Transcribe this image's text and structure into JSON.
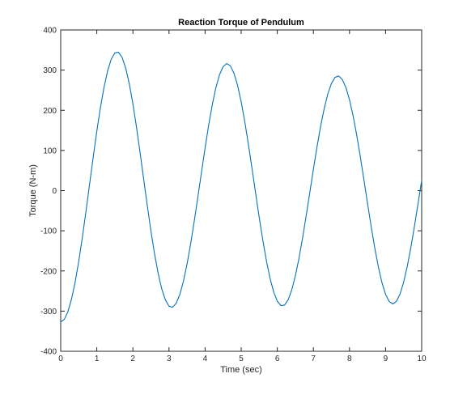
{
  "chart_data": {
    "type": "line",
    "title": "Reaction Torque of Pendulum",
    "xlabel": "Time (sec)",
    "ylabel": "Torque (N-m)",
    "xlim": [
      0,
      10
    ],
    "ylim": [
      -400,
      400
    ],
    "xticks": [
      0,
      1,
      2,
      3,
      4,
      5,
      6,
      7,
      8,
      9,
      10
    ],
    "yticks": [
      -400,
      -300,
      -200,
      -100,
      0,
      100,
      200,
      300,
      400
    ],
    "grid": false,
    "legend": "none",
    "series": [
      {
        "color": "#0072BD",
        "x": [
          0.0,
          0.1,
          0.2,
          0.3,
          0.4,
          0.5,
          0.6,
          0.7,
          0.8,
          0.9,
          1.0,
          1.1,
          1.2,
          1.3,
          1.4,
          1.5,
          1.6,
          1.7,
          1.8,
          1.9,
          2.0,
          2.1,
          2.2,
          2.3,
          2.4,
          2.5,
          2.6,
          2.7,
          2.8,
          2.9,
          3.0,
          3.1,
          3.2,
          3.3,
          3.4,
          3.5,
          3.6,
          3.7,
          3.8,
          3.9,
          4.0,
          4.1,
          4.2,
          4.3,
          4.4,
          4.5,
          4.6,
          4.7,
          4.8,
          4.9,
          5.0,
          5.1,
          5.2,
          5.3,
          5.4,
          5.5,
          5.6,
          5.7,
          5.8,
          5.9,
          6.0,
          6.1,
          6.2,
          6.3,
          6.4,
          6.5,
          6.6,
          6.7,
          6.8,
          6.9,
          7.0,
          7.1,
          7.2,
          7.3,
          7.4,
          7.5,
          7.6,
          7.7,
          7.8,
          7.9,
          8.0,
          8.1,
          8.2,
          8.3,
          8.4,
          8.5,
          8.6,
          8.7,
          8.8,
          8.9,
          9.0,
          9.1,
          9.2,
          9.3,
          9.4,
          9.5,
          9.6,
          9.7,
          9.8,
          9.9,
          10.0
        ],
        "y": [
          -327.0,
          -320.5,
          -301.2,
          -269.9,
          -227.8,
          -175.9,
          -116.5,
          -51.5,
          15.9,
          83.2,
          147.6,
          206.5,
          257.5,
          298.3,
          327.2,
          342.9,
          344.5,
          331.8,
          305.2,
          266.0,
          216.1,
          157.8,
          93.9,
          27.6,
          -38.1,
          -100.6,
          -157.4,
          -206.1,
          -244.8,
          -272.2,
          -287.6,
          -290.3,
          -280.4,
          -258.4,
          -225.4,
          -182.9,
          -132.4,
          -76.0,
          -15.8,
          45.9,
          106.5,
          163.4,
          214.3,
          256.7,
          288.7,
          308.8,
          316.3,
          310.7,
          292.3,
          262.0,
          221.1,
          171.4,
          115.1,
          54.9,
          -6.7,
          -67.2,
          -124.1,
          -175.3,
          -218.6,
          -252.3,
          -275.1,
          -286.2,
          -285.1,
          -271.9,
          -247.4,
          -212.5,
          -168.9,
          -118.3,
          -62.9,
          -5.1,
          52.9,
          108.6,
          160.0,
          204.6,
          240.8,
          266.9,
          282.0,
          285.4,
          276.9,
          257.0,
          226.4,
          186.3,
          138.3,
          84.4,
          26.8,
          -31.8,
          -89.1,
          -142.6,
          -190.0,
          -229.1,
          -258.3,
          -276.2,
          -282.1,
          -275.7,
          -257.4,
          -228.0,
          -188.8,
          -141.7,
          -88.7,
          -32.1,
          25.7
        ]
      }
    ]
  }
}
